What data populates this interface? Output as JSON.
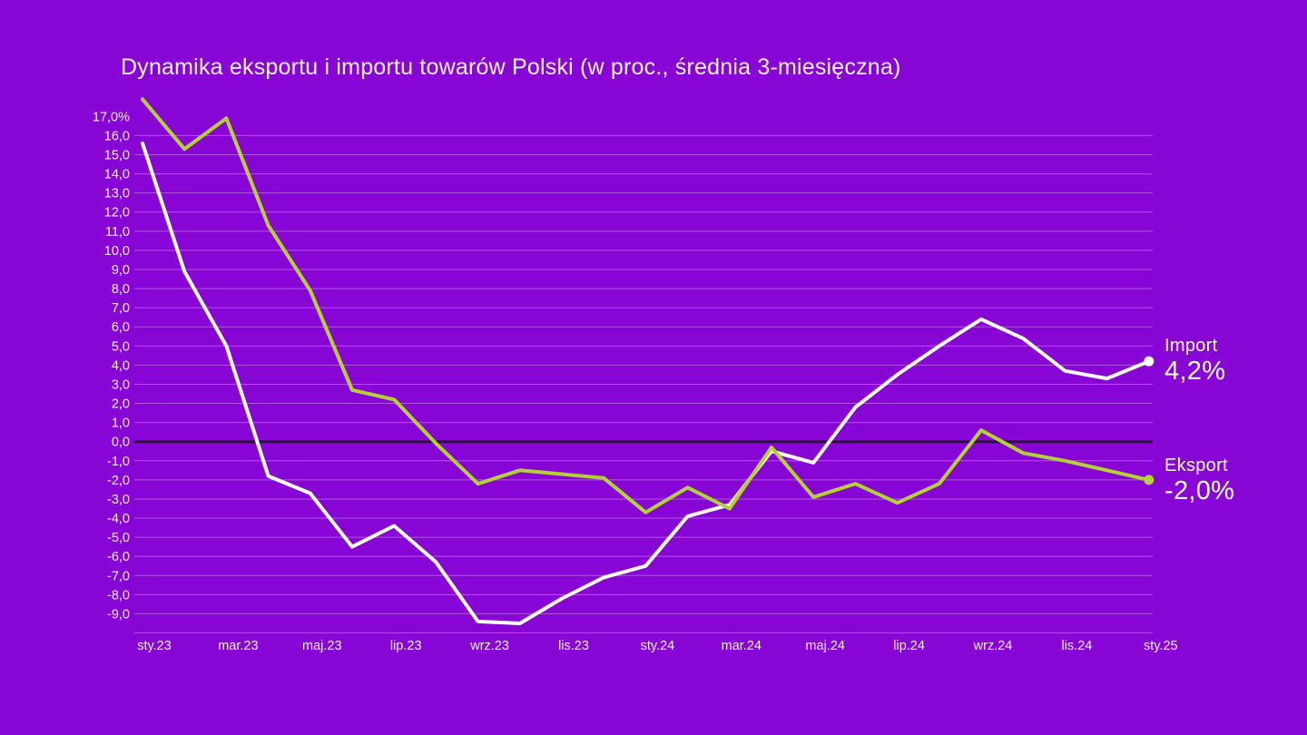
{
  "title": "Dynamika eksportu i importu towarów Polski (w proc., średnia 3-miesięczna)",
  "colors": {
    "background": "#8806D5",
    "gridline": "#FFFFFF",
    "gridline_opacity": 0.32,
    "zero_line": "#201A22",
    "import_line": "#FFFFFF",
    "eksport_line": "#B2D235",
    "label_text": "#F6ECFA"
  },
  "annotations": {
    "import_label": "Import",
    "import_value": "4,2%",
    "eksport_label": "Eksport",
    "eksport_value": "-2,0%"
  },
  "chart_data": {
    "type": "line",
    "title": "Dynamika eksportu i importu towarów Polski (w proc., średnia 3-miesięczna)",
    "categories": [
      "sty.23",
      "lut.23",
      "mar.23",
      "kwi.23",
      "maj.23",
      "cze.23",
      "lip.23",
      "sie.23",
      "wrz.23",
      "paź.23",
      "lis.23",
      "gru.23",
      "sty.24",
      "lut.24",
      "mar.24",
      "kwi.24",
      "maj.24",
      "cze.24",
      "lip.24",
      "sie.24",
      "wrz.24",
      "paź.24",
      "lis.24",
      "gru.24",
      "sty.25"
    ],
    "series": [
      {
        "name": "Import",
        "color": "#FFFFFF",
        "values": [
          15.6,
          8.9,
          5.0,
          -1.8,
          -2.7,
          -5.5,
          -4.4,
          -6.3,
          -9.4,
          -9.5,
          -8.2,
          -7.1,
          -6.5,
          -3.9,
          -3.3,
          -0.5,
          -1.1,
          1.8,
          3.5,
          5.0,
          6.4,
          5.4,
          3.7,
          3.3,
          4.2
        ]
      },
      {
        "name": "Eksport",
        "color": "#B2D235",
        "values": [
          17.9,
          15.3,
          16.9,
          11.3,
          7.9,
          2.7,
          2.2,
          -0.1,
          -2.2,
          -1.5,
          -1.7,
          -1.9,
          -3.7,
          -2.4,
          -3.5,
          -0.3,
          -2.9,
          -2.2,
          -3.2,
          -2.2,
          0.6,
          -0.6,
          -1.0,
          -1.5,
          -2.0
        ]
      }
    ],
    "x_axis": {
      "tick_labels": [
        "sty.23",
        "mar.23",
        "maj.23",
        "lip.23",
        "wrz.23",
        "lis.23",
        "sty.24",
        "mar.24",
        "maj.24",
        "lip.24",
        "wrz.24",
        "lis.24",
        "sty.25"
      ],
      "tick_point_indices": [
        0,
        2,
        4,
        6,
        8,
        10,
        12,
        14,
        16,
        18,
        20,
        22,
        24
      ]
    },
    "y_axis": {
      "tick_labels": [
        "17,0%",
        "16,0",
        "15,0",
        "14,0",
        "13,0",
        "12,0",
        "11,0",
        "10,0",
        "9,0",
        "8,0",
        "7,0",
        "6,0",
        "5,0",
        "4,0",
        "3,0",
        "2,0",
        "1,0",
        "0,0",
        "-1,0",
        "-2,0",
        "-3,0",
        "-4,0",
        "-5,0",
        "-6,0",
        "-7,0",
        "-8,0",
        "-9,0"
      ],
      "tick_values": [
        17,
        16,
        15,
        14,
        13,
        12,
        11,
        10,
        9,
        8,
        7,
        6,
        5,
        4,
        3,
        2,
        1,
        0,
        -1,
        -2,
        -3,
        -4,
        -5,
        -6,
        -7,
        -8,
        -9
      ],
      "gridline_top_value": 16,
      "gridline_bottom_value": -10,
      "zero_line_value": 0
    },
    "ylim": [
      -10,
      18
    ],
    "grid": true,
    "legend_position": "right-of-last-point",
    "end_point_markers": true
  }
}
